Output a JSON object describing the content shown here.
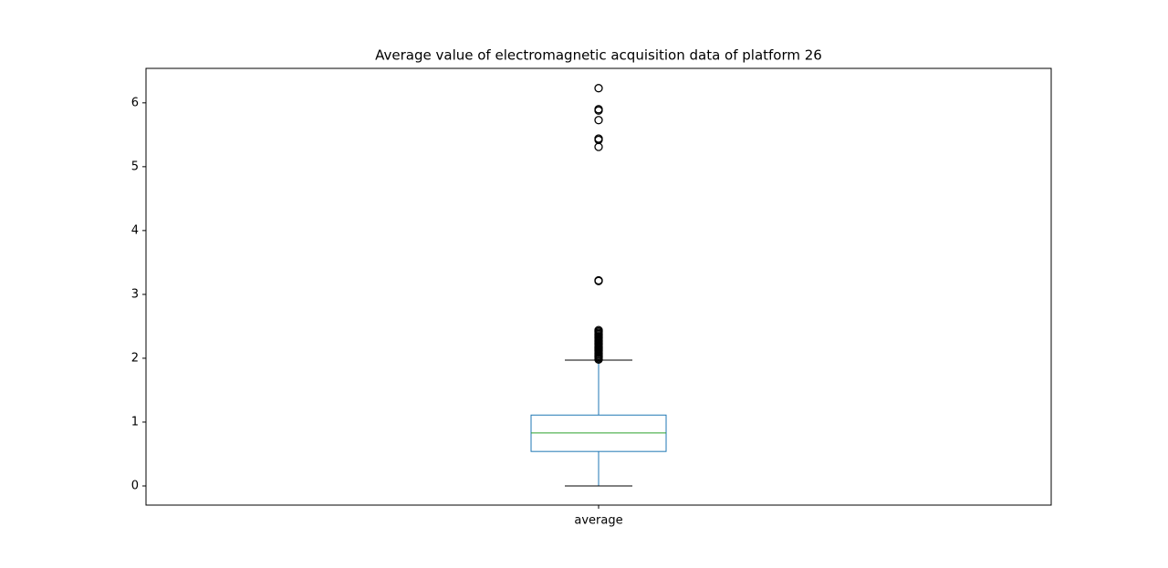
{
  "chart_data": {
    "type": "box",
    "title": "Average value of electromagnetic acquisition data of platform 26",
    "categories": [
      "average"
    ],
    "boxes": [
      {
        "whislo": 0,
        "q1": 0.54,
        "med": 0.83,
        "q3": 1.11,
        "whishi": 1.97,
        "fliers": [
          6.23,
          5.9,
          5.88,
          5.73,
          5.44,
          5.42,
          5.31,
          3.22,
          3.21,
          2.44,
          2.42,
          2.4,
          2.38,
          2.36,
          2.34,
          2.32,
          2.3,
          2.28,
          2.26,
          2.24,
          2.22,
          2.2,
          2.18,
          2.16,
          2.14,
          2.12,
          2.1,
          2.08,
          2.06,
          2.04,
          2.02,
          2,
          1.98
        ]
      }
    ],
    "box_color": "#1f77b4",
    "median_color": "#2ca02c",
    "whisker_color": "#1f77b4",
    "cap_color": "#000000",
    "flier_color": "#000000",
    "ylim": [
      -0.3,
      6.54
    ],
    "yticks": [
      0,
      1,
      2,
      3,
      4,
      5,
      6
    ],
    "grid": false
  }
}
